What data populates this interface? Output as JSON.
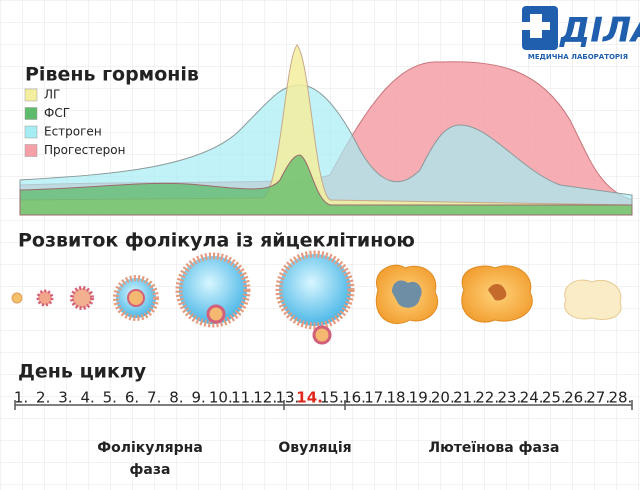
{
  "logo": {
    "name": "ДІЛА",
    "subtitle": "МЕДИЧНА ЛАБОРАТОРІЯ"
  },
  "hormones": {
    "title": "Рівень гормонів",
    "legend": [
      {
        "name": "ЛГ",
        "color": "#f3ef9e"
      },
      {
        "name": "ФСГ",
        "color": "#5dbb6b"
      },
      {
        "name": "Естроген",
        "color": "#a6ecf3"
      },
      {
        "name": "Прогестерон",
        "color": "#f5a0a7"
      }
    ]
  },
  "follicle": {
    "title": "Розвиток фолікула із яйцеклітиною"
  },
  "cycle": {
    "title": "День циклу",
    "days": [
      "1.",
      "2.",
      "3.",
      "4.",
      "5.",
      "6.",
      "7.",
      "8.",
      "9.",
      "10.",
      "11.",
      "12.",
      "13.",
      "14.",
      "15.",
      "16.",
      "17.",
      "18.",
      "19.",
      "20.",
      "21.",
      "22.",
      "23.",
      "24.",
      "25.",
      "26.",
      "27.",
      "28."
    ],
    "highlight_index": 13,
    "highlight_color": "#e0261c",
    "phases": [
      {
        "lines": [
          "Фолікулярна",
          "фаза"
        ]
      },
      {
        "lines": [
          "Овуляція"
        ]
      },
      {
        "lines": [
          "Лютеїнова фаза"
        ]
      }
    ]
  }
}
